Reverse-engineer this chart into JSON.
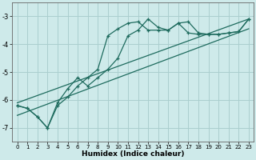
{
  "title": "",
  "xlabel": "Humidex (Indice chaleur)",
  "bg_color": "#ceeaea",
  "grid_color": "#aacfcf",
  "line_color": "#1e6b5e",
  "xlim": [
    -0.5,
    23.5
  ],
  "ylim": [
    -7.5,
    -2.5
  ],
  "yticks": [
    -7,
    -6,
    -5,
    -4,
    -3
  ],
  "xticks": [
    0,
    1,
    2,
    3,
    4,
    5,
    6,
    7,
    8,
    9,
    10,
    11,
    12,
    13,
    14,
    15,
    16,
    17,
    18,
    19,
    20,
    21,
    22,
    23
  ],
  "line1_x": [
    0,
    1,
    2,
    3,
    4,
    5,
    6,
    7,
    8,
    9,
    10,
    11,
    12,
    13,
    14,
    15,
    16,
    17,
    18,
    19,
    20,
    21,
    22,
    23
  ],
  "line1_y": [
    -6.2,
    -6.3,
    -6.6,
    -7.0,
    -6.2,
    -5.9,
    -5.5,
    -5.2,
    -4.9,
    -3.7,
    -3.45,
    -3.25,
    -3.2,
    -3.5,
    -3.5,
    -3.5,
    -3.25,
    -3.6,
    -3.65,
    -3.65,
    -3.65,
    -3.6,
    -3.55,
    -3.1
  ],
  "line2_x": [
    0,
    1,
    2,
    3,
    4,
    5,
    6,
    7,
    8,
    9,
    10,
    11,
    12,
    13,
    14,
    15,
    16,
    17,
    18,
    19,
    20,
    21,
    22,
    23
  ],
  "line2_y": [
    -6.2,
    -6.3,
    -6.6,
    -7.0,
    -6.1,
    -5.6,
    -5.2,
    -5.5,
    -5.2,
    -4.9,
    -4.5,
    -3.7,
    -3.5,
    -3.1,
    -3.4,
    -3.5,
    -3.25,
    -3.2,
    -3.6,
    -3.65,
    -3.65,
    -3.6,
    -3.55,
    -3.1
  ],
  "line3_x": [
    0,
    23
  ],
  "line3_y": [
    -6.55,
    -3.45
  ],
  "line4_x": [
    0,
    23
  ],
  "line4_y": [
    -6.1,
    -3.1
  ]
}
